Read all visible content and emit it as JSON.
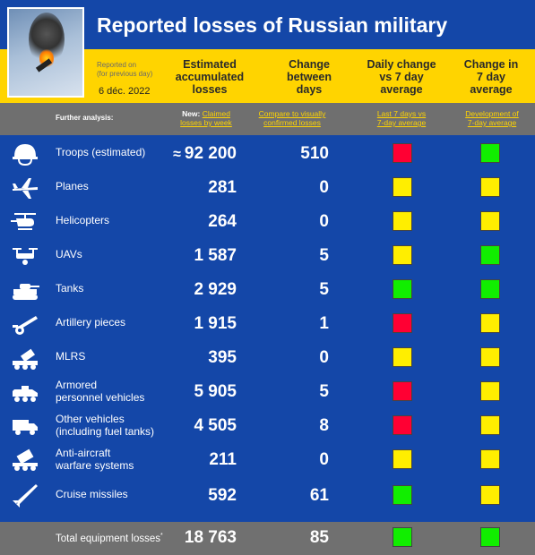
{
  "title": "Reported losses of Russian military",
  "reported_on": "Reported on",
  "reported_on_sub": "(for previous day)",
  "date": "6 déc. 2022",
  "columns": {
    "accumulated": [
      "Estimated",
      "accumulated",
      "losses"
    ],
    "change_days": [
      "Change",
      "between",
      "days"
    ],
    "daily_vs_avg": [
      "Daily change",
      "vs 7 day",
      "average"
    ],
    "change_avg": [
      "Change in",
      "7 day",
      "average"
    ]
  },
  "further": "Further analysis:",
  "links": {
    "new_label": "New:",
    "claimed": [
      "Claimed",
      "losses by week"
    ],
    "compare": [
      "Compare to visually",
      "confirmed losses"
    ],
    "last7": [
      "Last 7 days vs",
      "7-day average"
    ],
    "development": [
      "Development of",
      "7-day average"
    ]
  },
  "colors": {
    "red": "#ff0033",
    "yellow": "#ffee00",
    "green": "#11ee00"
  },
  "rows": [
    {
      "icon": "helmet-icon",
      "label": [
        "Troops (estimated)"
      ],
      "approx": "≈",
      "value": "92 200",
      "change": "510",
      "daily": "red",
      "trend": "green"
    },
    {
      "icon": "plane-icon",
      "label": [
        "Planes"
      ],
      "value": "281",
      "change": "0",
      "daily": "yellow",
      "trend": "yellow"
    },
    {
      "icon": "helicopter-icon",
      "label": [
        "Helicopters"
      ],
      "value": "264",
      "change": "0",
      "daily": "yellow",
      "trend": "yellow"
    },
    {
      "icon": "drone-icon",
      "label": [
        "UAVs"
      ],
      "value": "1 587",
      "change": "5",
      "daily": "yellow",
      "trend": "green"
    },
    {
      "icon": "tank-icon",
      "label": [
        "Tanks"
      ],
      "value": "2 929",
      "change": "5",
      "daily": "green",
      "trend": "green"
    },
    {
      "icon": "artillery-icon",
      "label": [
        "Artillery pieces"
      ],
      "value": "1 915",
      "change": "1",
      "daily": "red",
      "trend": "yellow"
    },
    {
      "icon": "mlrs-icon",
      "label": [
        "MLRS"
      ],
      "value": "395",
      "change": "0",
      "daily": "yellow",
      "trend": "yellow"
    },
    {
      "icon": "apc-icon",
      "label": [
        "Armored",
        "personnel vehicles"
      ],
      "value": "5 905",
      "change": "5",
      "daily": "red",
      "trend": "yellow"
    },
    {
      "icon": "truck-icon",
      "label": [
        "Other vehicles",
        "(including fuel tanks)"
      ],
      "value": "4 505",
      "change": "8",
      "daily": "red",
      "trend": "yellow"
    },
    {
      "icon": "anti-aircraft-icon",
      "label": [
        "Anti-aircraft",
        "warfare systems"
      ],
      "value": "211",
      "change": "0",
      "daily": "yellow",
      "trend": "yellow"
    },
    {
      "icon": "missile-icon",
      "label": [
        "Cruise missiles"
      ],
      "value": "592",
      "change": "61",
      "daily": "green",
      "trend": "yellow"
    }
  ],
  "total": {
    "label": "Total equipment losses",
    "mark": "*",
    "value": "18 763",
    "change": "85",
    "daily": "green",
    "trend": "green"
  }
}
